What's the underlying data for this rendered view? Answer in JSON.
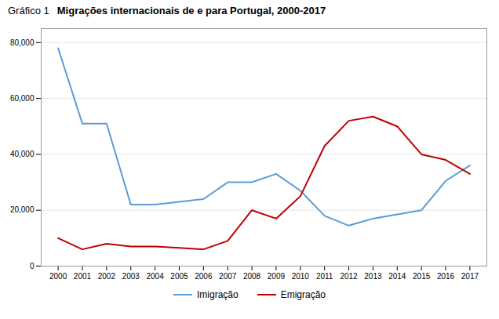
{
  "chart_data": {
    "type": "line",
    "subtitle": "Gráfico 1",
    "title": "Migrações internacionais de e para Portugal, 2000-2017",
    "x": [
      2000,
      2001,
      2002,
      2003,
      2004,
      2005,
      2006,
      2007,
      2008,
      2009,
      2010,
      2011,
      2012,
      2013,
      2014,
      2015,
      2016,
      2017
    ],
    "series": [
      {
        "name": "Imigração",
        "color": "#5B9BD5",
        "values": [
          78000,
          51000,
          51000,
          22000,
          22000,
          23000,
          24000,
          30000,
          30000,
          33000,
          27000,
          18000,
          14500,
          17000,
          18500,
          20000,
          30500,
          36000
        ]
      },
      {
        "name": "Emigração",
        "color": "#C00000",
        "values": [
          10000,
          6000,
          8000,
          7000,
          7000,
          6500,
          6000,
          9000,
          20000,
          17000,
          25000,
          43000,
          52000,
          53500,
          50000,
          40000,
          38000,
          33000
        ]
      }
    ],
    "xlim": [
      1999.3,
      2017.7
    ],
    "xticks": [
      2000,
      2001,
      2002,
      2003,
      2004,
      2005,
      2006,
      2007,
      2008,
      2009,
      2010,
      2011,
      2012,
      2013,
      2014,
      2015,
      2016,
      2017
    ],
    "ylim": [
      0,
      85000
    ],
    "yticks": [
      0,
      {
        "value": 20000,
        "label": "20,000"
      },
      {
        "value": 40000,
        "label": "40,000"
      },
      {
        "value": 60000,
        "label": "60,000"
      },
      {
        "value": 80000,
        "label": "80,000"
      }
    ],
    "grid": true,
    "legend": "bottom"
  }
}
